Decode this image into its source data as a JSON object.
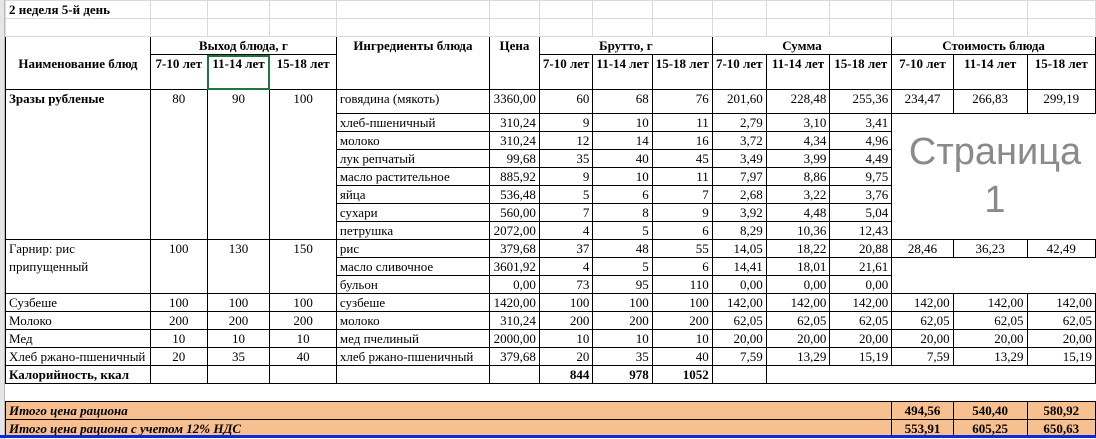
{
  "sheet_title": "2 неделя 5-й день",
  "watermark": "Страница 1",
  "headers": {
    "dish_name": "Наименование блюд",
    "yield": "Выход блюда, г",
    "ingredients": "Ингредиенты блюда",
    "price": "Цена",
    "brutto": "Брутто, г",
    "sum": "Сумма",
    "cost": "Стоимость блюда",
    "ages": [
      "7-10 лет",
      "11-14 лет",
      "15-18 лет"
    ]
  },
  "dishes": [
    {
      "name": "Зразы рубленые",
      "bold": true,
      "yield": [
        "80",
        "90",
        "100"
      ],
      "cost": [
        "234,47",
        "266,83",
        "299,19"
      ],
      "ingredients": [
        {
          "name": "говядина (мякоть)",
          "price": "3360,00",
          "brutto": [
            "60",
            "68",
            "76"
          ],
          "sum": [
            "201,60",
            "228,48",
            "255,36"
          ]
        },
        {
          "name": "хлеб-пшеничный",
          "price": "310,24",
          "brutto": [
            "9",
            "10",
            "11"
          ],
          "sum": [
            "2,79",
            "3,10",
            "3,41"
          ]
        },
        {
          "name": "молоко",
          "price": "310,24",
          "brutto": [
            "12",
            "14",
            "16"
          ],
          "sum": [
            "3,72",
            "4,34",
            "4,96"
          ]
        },
        {
          "name": "лук репчатый",
          "price": "99,68",
          "brutto": [
            "35",
            "40",
            "45"
          ],
          "sum": [
            "3,49",
            "3,99",
            "4,49"
          ]
        },
        {
          "name": "масло растительное",
          "price": "885,92",
          "brutto": [
            "9",
            "10",
            "11"
          ],
          "sum": [
            "7,97",
            "8,86",
            "9,75"
          ]
        },
        {
          "name": "яйца",
          "price": "536,48",
          "brutto": [
            "5",
            "6",
            "7"
          ],
          "sum": [
            "2,68",
            "3,22",
            "3,76"
          ]
        },
        {
          "name": "сухари",
          "price": "560,00",
          "brutto": [
            "7",
            "8",
            "9"
          ],
          "sum": [
            "3,92",
            "4,48",
            "5,04"
          ]
        },
        {
          "name": "петрушка",
          "price": "2072,00",
          "brutto": [
            "4",
            "5",
            "6"
          ],
          "sum": [
            "8,29",
            "10,36",
            "12,43"
          ]
        }
      ]
    },
    {
      "name": "Гарнир: рис припущенный",
      "bold": false,
      "yield": [
        "100",
        "130",
        "150"
      ],
      "cost": [
        "28,46",
        "36,23",
        "42,49"
      ],
      "ingredients": [
        {
          "name": "рис",
          "price": "379,68",
          "brutto": [
            "37",
            "48",
            "55"
          ],
          "sum": [
            "14,05",
            "18,22",
            "20,88"
          ]
        },
        {
          "name": "масло сливочное",
          "price": "3601,92",
          "brutto": [
            "4",
            "5",
            "6"
          ],
          "sum": [
            "14,41",
            "18,01",
            "21,61"
          ]
        },
        {
          "name": "бульон",
          "price": "0,00",
          "brutto": [
            "73",
            "95",
            "110"
          ],
          "sum": [
            "0,00",
            "0,00",
            "0,00"
          ]
        }
      ]
    },
    {
      "name": "Сузбеше",
      "bold": false,
      "yield": [
        "100",
        "100",
        "100"
      ],
      "cost": [
        "142,00",
        "142,00",
        "142,00"
      ],
      "ingredients": [
        {
          "name": "сузбеше",
          "price": "1420,00",
          "brutto": [
            "100",
            "100",
            "100"
          ],
          "sum": [
            "142,00",
            "142,00",
            "142,00"
          ]
        }
      ]
    },
    {
      "name": "Молоко",
      "bold": false,
      "yield": [
        "200",
        "200",
        "200"
      ],
      "cost": [
        "62,05",
        "62,05",
        "62,05"
      ],
      "ingredients": [
        {
          "name": "молоко",
          "price": "310,24",
          "brutto": [
            "200",
            "200",
            "200"
          ],
          "sum": [
            "62,05",
            "62,05",
            "62,05"
          ]
        }
      ]
    },
    {
      "name": "Мед",
      "bold": false,
      "yield": [
        "10",
        "10",
        "10"
      ],
      "cost": [
        "20,00",
        "20,00",
        "20,00"
      ],
      "ingredients": [
        {
          "name": "мед пчелиный",
          "price": "2000,00",
          "brutto": [
            "10",
            "10",
            "10"
          ],
          "sum": [
            "20,00",
            "20,00",
            "20,00"
          ]
        }
      ]
    },
    {
      "name": "Хлеб ржано-пшеничный",
      "bold": false,
      "yield": [
        "20",
        "35",
        "40"
      ],
      "cost": [
        "7,59",
        "13,29",
        "15,19"
      ],
      "ingredients": [
        {
          "name": "хлеб ржано-пшеничный",
          "price": "379,68",
          "brutto": [
            "20",
            "35",
            "40"
          ],
          "sum": [
            "7,59",
            "13,29",
            "15,19"
          ]
        }
      ]
    }
  ],
  "calories": {
    "label": "Калорийность, ккал",
    "values": [
      "844",
      "978",
      "1052"
    ]
  },
  "totals": [
    {
      "label": "Итого цена рациона",
      "values": [
        "494,56",
        "540,40",
        "580,92"
      ]
    },
    {
      "label": "Итого цена рациона с учетом 12% НДС",
      "values": [
        "553,91",
        "605,25",
        "650,63"
      ]
    }
  ],
  "colors": {
    "total_fill": "#f8c08f",
    "selection": "#217346",
    "page_break": "#0a2bd6"
  }
}
